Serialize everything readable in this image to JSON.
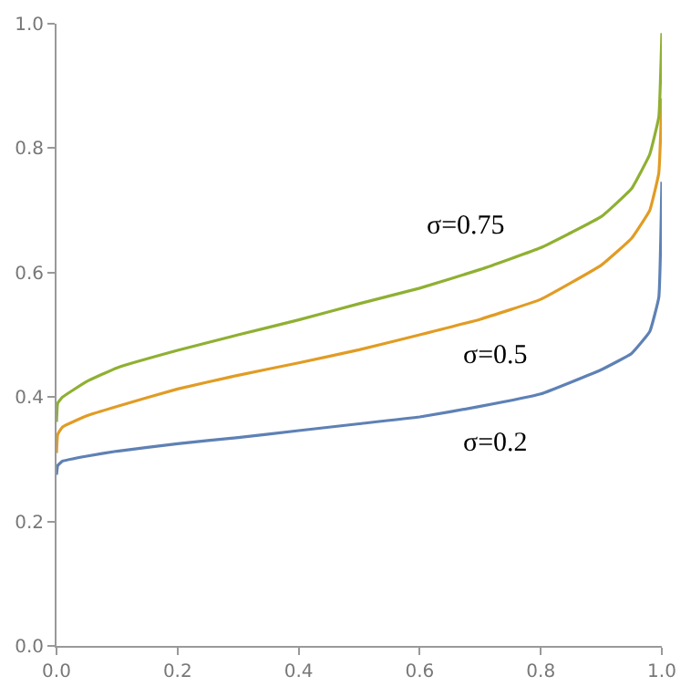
{
  "chart_data": {
    "type": "line",
    "x": [
      0,
      0.002,
      0.01,
      0.05,
      0.1,
      0.2,
      0.3,
      0.4,
      0.5,
      0.6,
      0.7,
      0.8,
      0.9,
      0.95,
      0.98,
      0.995,
      1.0
    ],
    "series": [
      {
        "name": "σ=0.2",
        "color": "#5e81b5",
        "values": [
          0.275,
          0.29,
          0.297,
          0.305,
          0.313,
          0.325,
          0.335,
          0.346,
          0.357,
          0.368,
          0.385,
          0.405,
          0.444,
          0.47,
          0.505,
          0.56,
          0.746
        ]
      },
      {
        "name": "σ=0.5",
        "color": "#e19c24",
        "values": [
          0.31,
          0.34,
          0.352,
          0.37,
          0.385,
          0.413,
          0.435,
          0.455,
          0.476,
          0.5,
          0.525,
          0.557,
          0.612,
          0.655,
          0.7,
          0.76,
          0.88
        ]
      },
      {
        "name": "σ=0.75",
        "color": "#8fb032",
        "values": [
          0.36,
          0.39,
          0.4,
          0.425,
          0.447,
          0.475,
          0.5,
          0.524,
          0.55,
          0.575,
          0.605,
          0.64,
          0.69,
          0.735,
          0.79,
          0.85,
          0.985
        ]
      }
    ],
    "xlim": [
      0,
      1
    ],
    "ylim": [
      0,
      1
    ],
    "xticks": [
      {
        "value": 0,
        "label": "0.0"
      },
      0.2,
      0.4,
      0.6,
      0.8,
      {
        "value": 1,
        "label": "1.0"
      }
    ],
    "yticks": [
      {
        "value": 0,
        "label": "0.0"
      },
      0.2,
      0.4,
      0.6,
      0.8,
      {
        "value": 1,
        "label": "1.0"
      }
    ],
    "grid": false,
    "marker": "none",
    "line_style": "solid"
  }
}
